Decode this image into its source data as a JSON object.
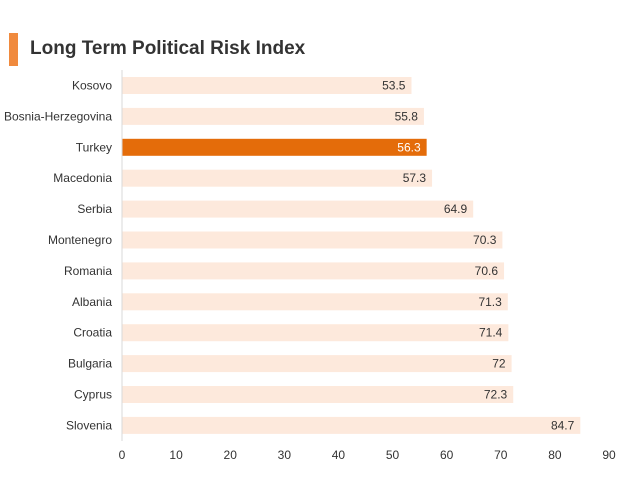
{
  "chart_data": {
    "type": "bar",
    "orientation": "horizontal",
    "title": "Long Term Political Risk Index",
    "categories": [
      "Kosovo",
      "Bosnia-Herzegovina",
      "Turkey",
      "Macedonia",
      "Serbia",
      "Montenegro",
      "Romania",
      "Albania",
      "Croatia",
      "Bulgaria",
      "Cyprus",
      "Slovenia"
    ],
    "values": [
      53.5,
      55.8,
      56.3,
      57.3,
      64.9,
      70.3,
      70.6,
      71.3,
      71.4,
      72,
      72.3,
      84.7
    ],
    "value_labels": [
      "53.5",
      "55.8",
      "56.3",
      "57.3",
      "64.9",
      "70.3",
      "70.6",
      "71.3",
      "71.4",
      "72",
      "72.3",
      "84.7"
    ],
    "highlight": "Turkey",
    "xlim": [
      0,
      90
    ],
    "xticks": [
      0,
      10,
      20,
      30,
      40,
      50,
      60,
      70,
      80,
      90
    ],
    "grid": false,
    "legend": "none",
    "colors": {
      "bar": "#fde9dc",
      "highlight_bar": "#e46c0a",
      "title_accent": "#f08a3e",
      "axis": "#d9d9d9",
      "text": "#333333",
      "highlight_text": "#ffffff"
    }
  }
}
